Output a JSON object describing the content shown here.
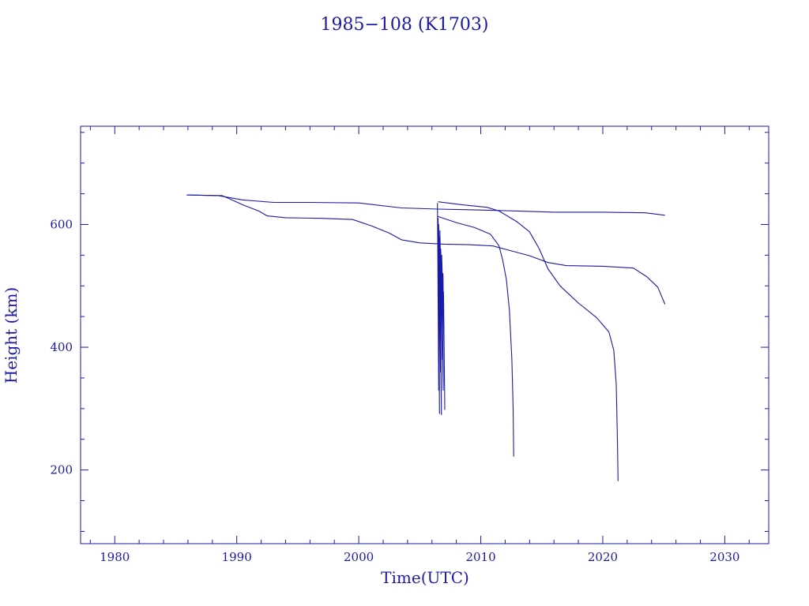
{
  "chart_data": {
    "type": "line",
    "title": "1985−108 (K1703)",
    "xlabel": "Time(UTC)",
    "ylabel": "Height (km)",
    "xlim": [
      1977.2,
      2033.6
    ],
    "ylim": [
      80,
      760
    ],
    "xticks": [
      1980,
      1990,
      2000,
      2010,
      2020,
      2030
    ],
    "xtick_labels": [
      "1980",
      "1990",
      "2000",
      "2010",
      "2020",
      "2030"
    ],
    "yticks": [
      200,
      400,
      600
    ],
    "ytick_labels": [
      "200",
      "400",
      "600"
    ],
    "grid": false,
    "color": "#1a1aa6",
    "series": [
      {
        "x": [
          1985.9,
          1988.5,
          1990.5,
          1993,
          1996,
          2000,
          2003.5,
          2006.5,
          2009,
          2011,
          2013,
          2016,
          2020,
          2023.5,
          2025.1
        ],
        "y": [
          648,
          647,
          640,
          636,
          636,
          635,
          627,
          625,
          624,
          623,
          622,
          620,
          620,
          619,
          615
        ]
      },
      {
        "x": [
          1985.9,
          1988.8,
          1989.5,
          1990.5,
          1991.8,
          1992.5,
          1994,
          1997,
          1999.5,
          2001,
          2002.5,
          2003.5,
          2005,
          2007,
          2009,
          2011,
          2012.5,
          2014,
          2015.5,
          2017,
          2020,
          2022.5,
          2023.6,
          2024.5,
          2025.1
        ],
        "y": [
          648,
          647,
          641,
          632,
          622,
          614,
          611,
          610,
          608,
          598,
          586,
          575,
          570,
          568,
          567,
          565,
          557,
          549,
          538,
          533,
          532,
          529,
          515,
          498,
          470
        ]
      },
      {
        "x": [
          2006.5,
          2008,
          2009.5,
          2010.8,
          2011.5,
          2011.8,
          2012.1,
          2012.35,
          2012.55,
          2012.65,
          2012.7
        ],
        "y": [
          613,
          603,
          595,
          584,
          565,
          542,
          510,
          460,
          380,
          300,
          222
        ]
      },
      {
        "x": [
          2006.5,
          2008.5,
          2010.5,
          2011.5,
          2013,
          2014,
          2014.8,
          2015.5,
          2016.5,
          2018,
          2019.5,
          2020.5,
          2020.9,
          2021.1,
          2021.2,
          2021.25
        ],
        "y": [
          637,
          632,
          628,
          622,
          604,
          588,
          560,
          528,
          500,
          472,
          448,
          425,
          395,
          340,
          250,
          182
        ]
      },
      {
        "x": [
          2006.45,
          2006.55,
          2006.5,
          2006.62,
          2006.55,
          2006.7,
          2006.6,
          2006.78,
          2006.65,
          2006.85,
          2006.72,
          2006.92,
          2006.8,
          2006.98,
          2006.9,
          2007.02,
          2006.95,
          2007.05
        ],
        "y": [
          635,
          330,
          610,
          292,
          600,
          360,
          580,
          290,
          590,
          380,
          560,
          330,
          550,
          410,
          520,
          340,
          490,
          298
        ]
      }
    ]
  }
}
